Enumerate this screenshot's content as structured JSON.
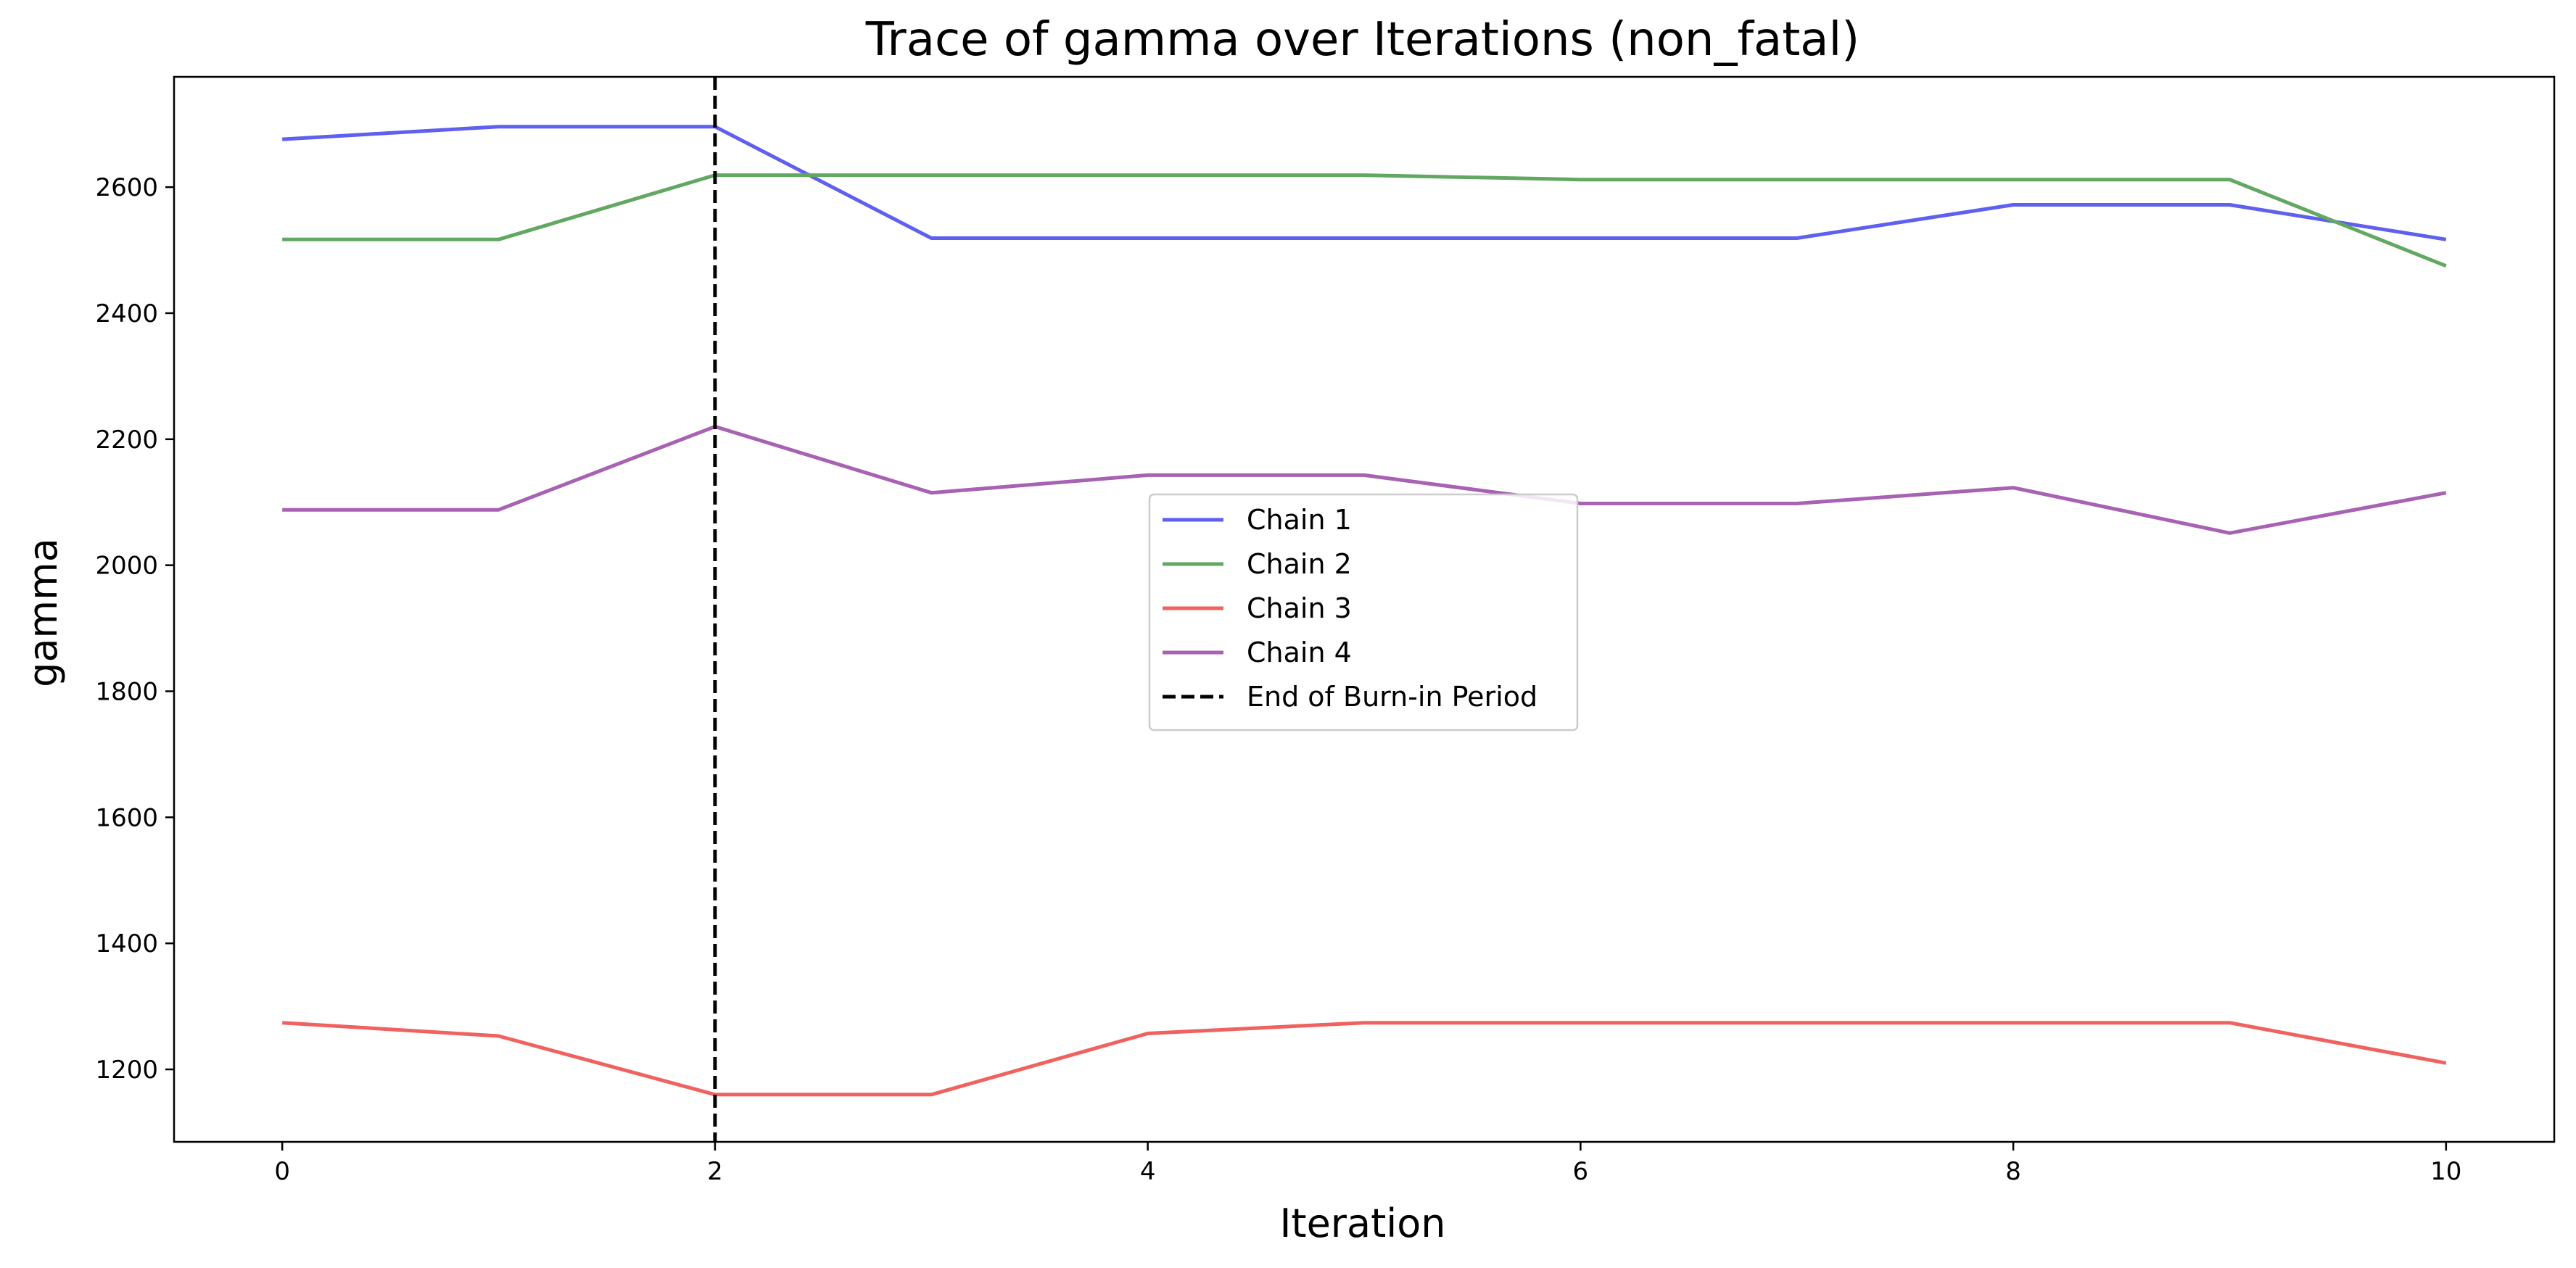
{
  "chart_data": {
    "type": "line",
    "title": "Trace of gamma over Iterations (non_fatal)",
    "xlabel": "Iteration",
    "ylabel": "gamma",
    "xlim": [
      -0.5,
      10.5
    ],
    "ylim": [
      1085,
      2775
    ],
    "x_ticks": [
      0,
      2,
      4,
      6,
      8,
      10
    ],
    "y_ticks": [
      1200,
      1400,
      1600,
      1800,
      2000,
      2200,
      2400,
      2600
    ],
    "grid": false,
    "legend_position": "center",
    "x": [
      0,
      1,
      2,
      3,
      4,
      5,
      6,
      7,
      8,
      9,
      10
    ],
    "series": [
      {
        "name": "Chain 1",
        "color": "#5f5ff0",
        "values": [
          2676,
          2696,
          2696,
          2519,
          2519,
          2519,
          2519,
          2519,
          2572,
          2572,
          2517
        ]
      },
      {
        "name": "Chain 2",
        "color": "#62a862",
        "values": [
          2517,
          2517,
          2619,
          2619,
          2619,
          2619,
          2612,
          2612,
          2612,
          2612,
          2475
        ]
      },
      {
        "name": "Chain 3",
        "color": "#f0625f",
        "values": [
          1274,
          1253,
          1160,
          1160,
          1257,
          1274,
          1274,
          1274,
          1274,
          1274,
          1210
        ]
      },
      {
        "name": "Chain 4",
        "color": "#a862b3",
        "values": [
          2088,
          2088,
          2220,
          2115,
          2143,
          2143,
          2098,
          2098,
          2123,
          2051,
          2115
        ]
      }
    ],
    "vline": {
      "x": 2,
      "label": "End of Burn-in Period",
      "color": "#000000",
      "style": "dashed"
    }
  }
}
